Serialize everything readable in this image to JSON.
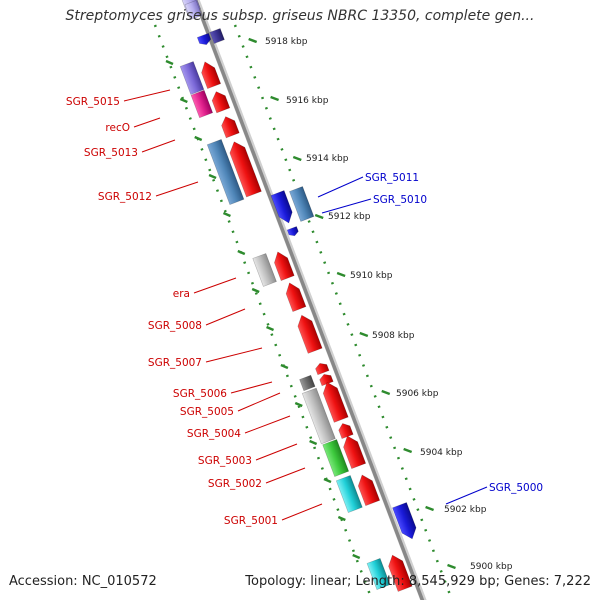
{
  "title": "Streptomyces griseus subsp. griseus NBRC 13350, complete gen...",
  "footer": {
    "accession": "Accession: NC_010572",
    "summary": "Topology: linear; Length: 8,545,929 bp; Genes: 7,222"
  },
  "colors": {
    "background": "#ffffff",
    "backbone": "#888888",
    "ruler_ticks": "#2e8b2e",
    "label_left": "#cc0000",
    "label_right": "#0000cc",
    "gene_red": "#ee1111",
    "gene_blue": "#1a1ad8",
    "gene_steel": "#4f86b8",
    "gene_purple": "#7b68d8",
    "gene_magenta": "#e0208c",
    "gene_gray": "#bdbdbd",
    "gene_green": "#3cc83c",
    "gene_cyan": "#20d0d8"
  },
  "scale_labels": [
    "5918 kbp",
    "5916 kbp",
    "5914 kbp",
    "5912 kbp",
    "5910 kbp",
    "5908 kbp",
    "5906 kbp",
    "5904 kbp",
    "5902 kbp",
    "5900 kbp"
  ],
  "left_labels": [
    "SGR_5015",
    "recO",
    "SGR_5013",
    "SGR_5012",
    "era",
    "SGR_5008",
    "SGR_5007",
    "SGR_5006",
    "SGR_5005",
    "SGR_5004",
    "SGR_5003",
    "SGR_5002",
    "SGR_5001"
  ],
  "right_labels": [
    "SGR_5011",
    "SGR_5010",
    "SGR_5000"
  ]
}
